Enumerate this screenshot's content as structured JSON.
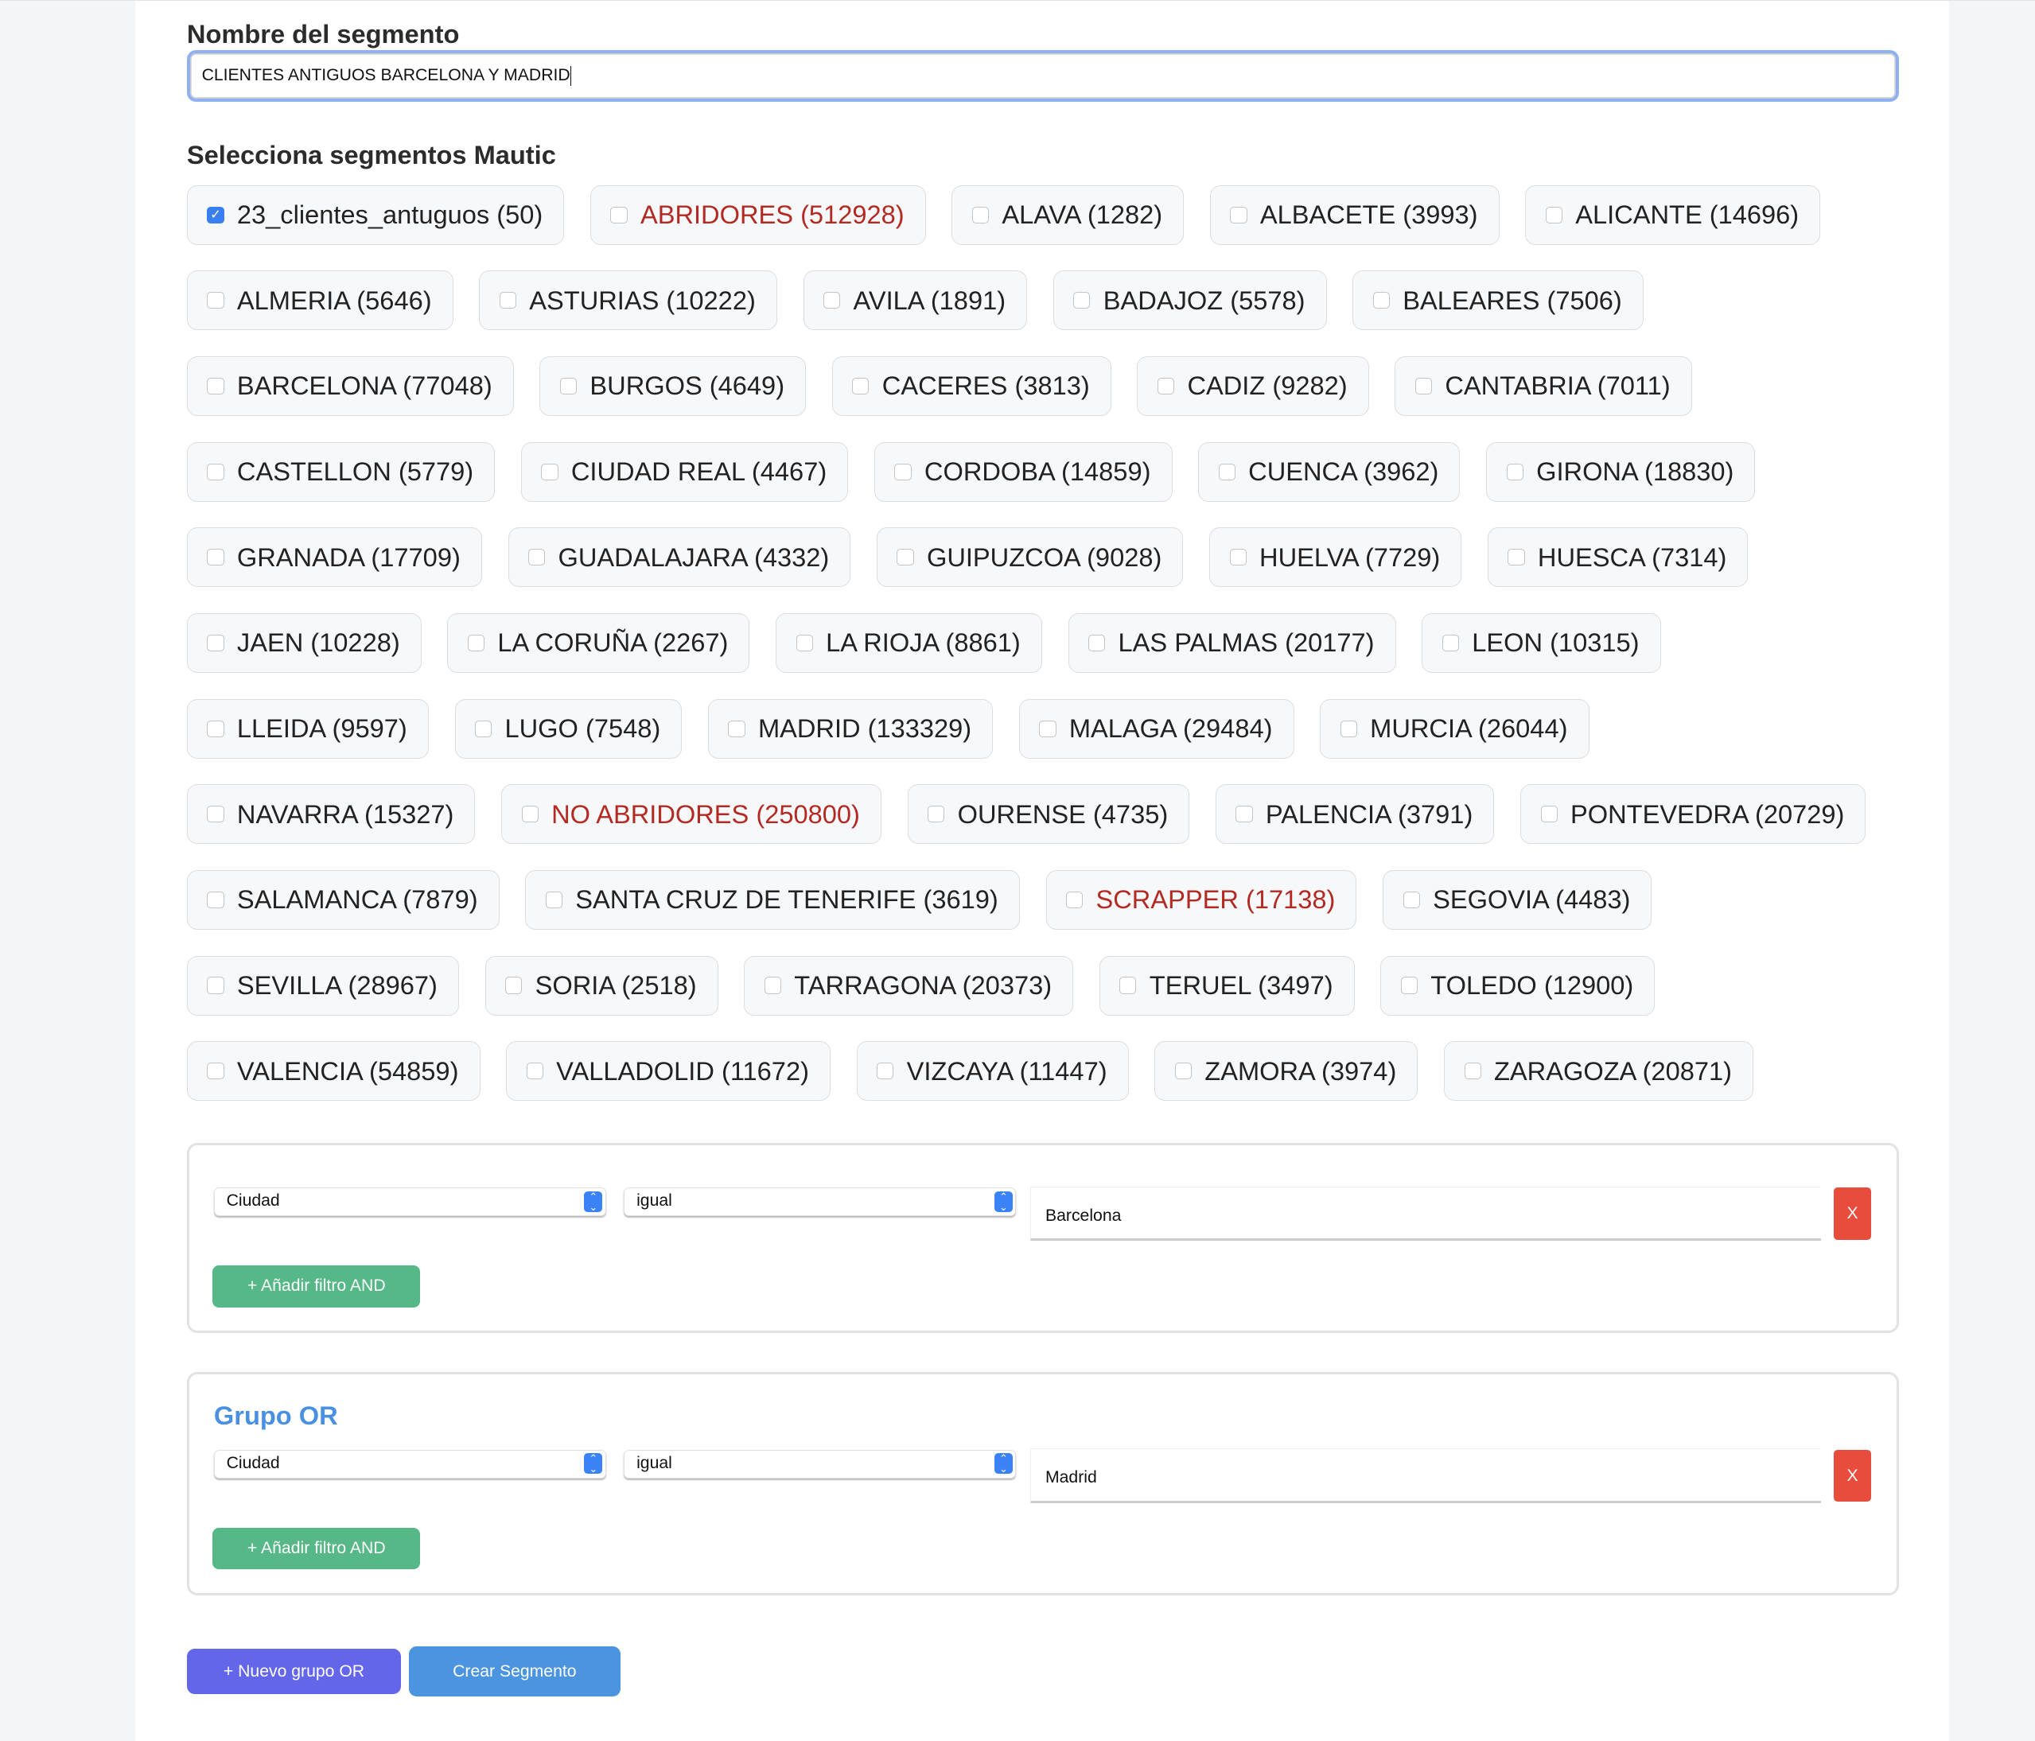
{
  "form": {
    "name_label": "Nombre del segmento",
    "name_value": "CLIENTES ANTIGUOS BARCELONA Y MADRID",
    "segments_label": "Selecciona segmentos Mautic"
  },
  "segments": [
    {
      "label": "23_clientes_antuguos (50)",
      "checked": true
    },
    {
      "label": "ABRIDORES (512928)",
      "highlight": true
    },
    {
      "label": "ALAVA (1282)"
    },
    {
      "label": "ALBACETE (3993)"
    },
    {
      "label": "ALICANTE (14696)"
    },
    {
      "label": "ALMERIA (5646)"
    },
    {
      "label": "ASTURIAS (10222)"
    },
    {
      "label": "AVILA (1891)"
    },
    {
      "label": "BADAJOZ (5578)"
    },
    {
      "label": "BALEARES (7506)"
    },
    {
      "label": "BARCELONA (77048)"
    },
    {
      "label": "BURGOS (4649)"
    },
    {
      "label": "CACERES (3813)"
    },
    {
      "label": "CADIZ (9282)"
    },
    {
      "label": "CANTABRIA (7011)"
    },
    {
      "label": "CASTELLON (5779)"
    },
    {
      "label": "CIUDAD REAL (4467)"
    },
    {
      "label": "CORDOBA (14859)"
    },
    {
      "label": "CUENCA (3962)"
    },
    {
      "label": "GIRONA (18830)"
    },
    {
      "label": "GRANADA (17709)"
    },
    {
      "label": "GUADALAJARA (4332)"
    },
    {
      "label": "GUIPUZCOA (9028)"
    },
    {
      "label": "HUELVA (7729)"
    },
    {
      "label": "HUESCA (7314)"
    },
    {
      "label": "JAEN (10228)"
    },
    {
      "label": "LA CORUÑA (2267)"
    },
    {
      "label": "LA RIOJA (8861)"
    },
    {
      "label": "LAS PALMAS (20177)"
    },
    {
      "label": "LEON (10315)"
    },
    {
      "label": "LLEIDA (9597)"
    },
    {
      "label": "LUGO (7548)"
    },
    {
      "label": "MADRID (133329)"
    },
    {
      "label": "MALAGA (29484)"
    },
    {
      "label": "MURCIA (26044)"
    },
    {
      "label": "NAVARRA (15327)"
    },
    {
      "label": "NO ABRIDORES (250800)",
      "highlight": true
    },
    {
      "label": "OURENSE (4735)"
    },
    {
      "label": "PALENCIA (3791)"
    },
    {
      "label": "PONTEVEDRA (20729)"
    },
    {
      "label": "SALAMANCA (7879)"
    },
    {
      "label": "SANTA CRUZ DE TENERIFE (3619)"
    },
    {
      "label": "SCRAPPER (17138)",
      "highlight": true
    },
    {
      "label": "SEGOVIA (4483)"
    },
    {
      "label": "SEVILLA (28967)"
    },
    {
      "label": "SORIA (2518)"
    },
    {
      "label": "TARRAGONA (20373)"
    },
    {
      "label": "TERUEL (3497)"
    },
    {
      "label": "TOLEDO (12900)"
    },
    {
      "label": "VALENCIA (54859)"
    },
    {
      "label": "VALLADOLID (11672)"
    },
    {
      "label": "VIZCAYA (11447)"
    },
    {
      "label": "ZAMORA (3974)"
    },
    {
      "label": "ZARAGOZA (20871)"
    }
  ],
  "groups": [
    {
      "title": "",
      "field": "Ciudad",
      "operator": "igual",
      "value": "Barcelona",
      "remove_label": "X",
      "add_label": "+ Añadir filtro AND"
    },
    {
      "title": "Grupo OR",
      "field": "Ciudad",
      "operator": "igual",
      "value": "Madrid",
      "remove_label": "X",
      "add_label": "+ Añadir filtro AND"
    }
  ],
  "actions": {
    "new_or_group": "+ Nuevo grupo OR",
    "create": "Crear Segmento"
  },
  "colors": {
    "highlight_text": "#b32a22",
    "checkbox": "#3a7ff0",
    "add_button": "#56b886",
    "remove_button": "#e74c3c",
    "group_title": "#4a90e2",
    "new_group_button": "#6366e8",
    "create_button": "#4a94e0"
  }
}
